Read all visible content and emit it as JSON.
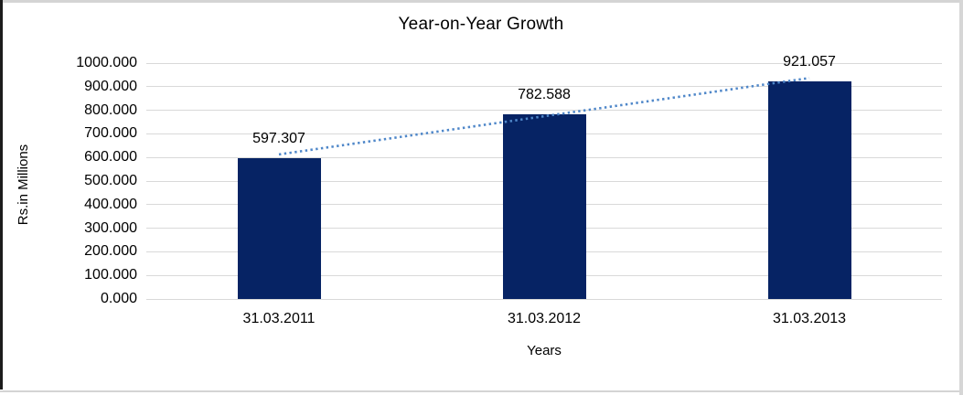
{
  "chart_data": {
    "type": "bar",
    "title": "Year-on-Year Growth",
    "xlabel": "Years",
    "ylabel": "Rs.in Millions",
    "categories": [
      "31.03.2011",
      "31.03.2012",
      "31.03.2013"
    ],
    "values": [
      597.307,
      782.588,
      921.057
    ],
    "data_labels": [
      "597.307",
      "782.588",
      "921.057"
    ],
    "ylim": [
      0,
      1000
    ],
    "ytick_step": 100,
    "ytick_labels_bottom_to_top": [
      "0.000",
      "100.000",
      "200.000",
      "300.000",
      "400.000",
      "500.000",
      "600.000",
      "700.000",
      "800.000",
      "900.000",
      "1000.000"
    ],
    "grid": true,
    "legend": "none",
    "trendline": {
      "type": "linear",
      "style": "dotted"
    },
    "colors": {
      "bar": "#062364",
      "trendline": "#4f87c9",
      "gridline": "#d9d9d9",
      "text": "#000000"
    }
  },
  "chrome": {
    "edge_top_color": "#d4d4d4",
    "edge_bottom_color": "#d4d4d4",
    "edge_right_color": "#d6d6d6",
    "edge_left_color": "#1c1c1c"
  }
}
